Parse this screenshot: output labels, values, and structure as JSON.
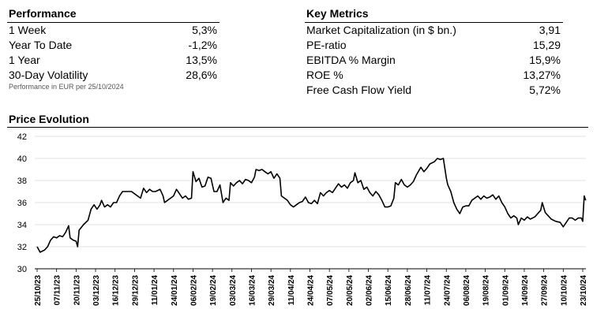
{
  "performance": {
    "title": "Performance",
    "rows": [
      {
        "label": "1 Week",
        "value": "5,3%"
      },
      {
        "label": "Year To Date",
        "value": "-1,2%"
      },
      {
        "label": "1 Year",
        "value": "13,5%"
      },
      {
        "label": "30-Day Volatility",
        "value": "28,6%"
      }
    ],
    "note": "Performance in EUR per 25/10/2024"
  },
  "key_metrics": {
    "title": "Key Metrics",
    "rows": [
      {
        "label": "Market Capitalization (in $ bn.)",
        "value": "3,91"
      },
      {
        "label": "PE-ratio",
        "value": "15,29"
      },
      {
        "label": "EBITDA % Margin",
        "value": "15,9%"
      },
      {
        "label": "ROE %",
        "value": "13,27%"
      },
      {
        "label": "Free Cash Flow Yield",
        "value": "5,72%"
      }
    ]
  },
  "chart_data": {
    "type": "line",
    "title": "Price Evolution",
    "ylim": [
      30,
      42
    ],
    "yticks": [
      30,
      32,
      34,
      36,
      38,
      40,
      42
    ],
    "grid": "horizontal",
    "x_tick_labels": [
      "25/10/23",
      "07/11/23",
      "20/11/23",
      "03/12/23",
      "16/12/23",
      "29/12/23",
      "11/01/24",
      "24/01/24",
      "06/02/24",
      "19/02/24",
      "03/03/24",
      "16/03/24",
      "29/03/24",
      "11/04/24",
      "24/04/24",
      "07/05/24",
      "20/05/24",
      "02/06/24",
      "15/06/24",
      "28/06/24",
      "11/07/24",
      "24/07/24",
      "06/08/24",
      "19/08/24",
      "01/09/24",
      "14/09/24",
      "27/09/24",
      "10/10/24",
      "23/10/24"
    ],
    "series": [
      {
        "color": "#000000",
        "points": [
          [
            "25/10/23",
            32.0
          ],
          [
            "27/10/23",
            31.5
          ],
          [
            "30/10/23",
            31.7
          ],
          [
            "01/11/23",
            32.0
          ],
          [
            "03/11/23",
            32.6
          ],
          [
            "05/11/23",
            32.9
          ],
          [
            "07/11/23",
            32.8
          ],
          [
            "09/11/23",
            33.0
          ],
          [
            "11/11/23",
            32.9
          ],
          [
            "13/11/23",
            33.3
          ],
          [
            "15/11/23",
            33.9
          ],
          [
            "16/11/23",
            32.8
          ],
          [
            "18/11/23",
            32.6
          ],
          [
            "20/11/23",
            32.5
          ],
          [
            "21/11/23",
            32.0
          ],
          [
            "22/11/23",
            33.5
          ],
          [
            "25/11/23",
            34.0
          ],
          [
            "28/11/23",
            34.4
          ],
          [
            "30/11/23",
            35.4
          ],
          [
            "02/12/23",
            35.8
          ],
          [
            "04/12/23",
            35.4
          ],
          [
            "06/12/23",
            35.8
          ],
          [
            "07/12/23",
            36.2
          ],
          [
            "09/12/23",
            35.6
          ],
          [
            "11/12/23",
            35.8
          ],
          [
            "13/12/23",
            35.6
          ],
          [
            "15/12/23",
            36.0
          ],
          [
            "17/12/23",
            36.0
          ],
          [
            "19/12/23",
            36.6
          ],
          [
            "21/12/23",
            37.0
          ],
          [
            "24/12/23",
            37.0
          ],
          [
            "27/12/23",
            37.0
          ],
          [
            "29/12/23",
            36.8
          ],
          [
            "31/12/23",
            36.6
          ],
          [
            "02/01/24",
            36.4
          ],
          [
            "04/01/24",
            37.3
          ],
          [
            "06/01/24",
            36.9
          ],
          [
            "08/01/24",
            37.2
          ],
          [
            "10/01/24",
            37.0
          ],
          [
            "12/01/24",
            37.0
          ],
          [
            "15/01/24",
            37.2
          ],
          [
            "17/01/24",
            36.6
          ],
          [
            "18/01/24",
            36.0
          ],
          [
            "20/01/24",
            36.2
          ],
          [
            "22/01/24",
            36.4
          ],
          [
            "24/01/24",
            36.6
          ],
          [
            "26/01/24",
            37.2
          ],
          [
            "28/01/24",
            36.8
          ],
          [
            "30/01/24",
            36.4
          ],
          [
            "01/02/24",
            36.6
          ],
          [
            "03/02/24",
            36.3
          ],
          [
            "05/02/24",
            36.4
          ],
          [
            "06/02/24",
            38.8
          ],
          [
            "08/02/24",
            37.9
          ],
          [
            "10/02/24",
            38.2
          ],
          [
            "12/02/24",
            37.4
          ],
          [
            "14/02/24",
            37.5
          ],
          [
            "16/02/24",
            38.3
          ],
          [
            "18/02/24",
            38.2
          ],
          [
            "20/02/24",
            37.0
          ],
          [
            "22/02/24",
            37.0
          ],
          [
            "24/02/24",
            37.6
          ],
          [
            "26/02/24",
            36.0
          ],
          [
            "28/02/24",
            36.4
          ],
          [
            "01/03/24",
            36.2
          ],
          [
            "02/03/24",
            37.8
          ],
          [
            "04/03/24",
            37.5
          ],
          [
            "06/03/24",
            37.8
          ],
          [
            "08/03/24",
            38.0
          ],
          [
            "10/03/24",
            37.7
          ],
          [
            "12/03/24",
            38.1
          ],
          [
            "14/03/24",
            38.0
          ],
          [
            "16/03/24",
            37.8
          ],
          [
            "18/03/24",
            38.3
          ],
          [
            "19/03/24",
            39.0
          ],
          [
            "21/03/24",
            38.9
          ],
          [
            "23/03/24",
            39.0
          ],
          [
            "25/03/24",
            38.8
          ],
          [
            "27/03/24",
            38.6
          ],
          [
            "29/03/24",
            38.8
          ],
          [
            "31/03/24",
            38.2
          ],
          [
            "02/04/24",
            38.6
          ],
          [
            "04/04/24",
            38.2
          ],
          [
            "05/04/24",
            36.6
          ],
          [
            "07/04/24",
            36.4
          ],
          [
            "09/04/24",
            36.2
          ],
          [
            "11/04/24",
            35.8
          ],
          [
            "13/04/24",
            35.6
          ],
          [
            "15/04/24",
            35.8
          ],
          [
            "17/04/24",
            36.0
          ],
          [
            "19/04/24",
            36.1
          ],
          [
            "21/04/24",
            36.5
          ],
          [
            "23/04/24",
            36.0
          ],
          [
            "25/04/24",
            35.9
          ],
          [
            "27/04/24",
            36.2
          ],
          [
            "29/04/24",
            35.9
          ],
          [
            "01/05/24",
            36.9
          ],
          [
            "03/05/24",
            36.6
          ],
          [
            "05/05/24",
            36.9
          ],
          [
            "07/05/24",
            37.1
          ],
          [
            "09/05/24",
            36.9
          ],
          [
            "11/05/24",
            37.3
          ],
          [
            "13/05/24",
            37.7
          ],
          [
            "15/05/24",
            37.4
          ],
          [
            "17/05/24",
            37.6
          ],
          [
            "19/05/24",
            37.3
          ],
          [
            "21/05/24",
            37.8
          ],
          [
            "23/05/24",
            38.0
          ],
          [
            "24/05/24",
            38.7
          ],
          [
            "26/05/24",
            37.8
          ],
          [
            "28/05/24",
            38.0
          ],
          [
            "30/05/24",
            37.2
          ],
          [
            "01/06/24",
            37.4
          ],
          [
            "03/06/24",
            36.9
          ],
          [
            "05/06/24",
            36.6
          ],
          [
            "07/06/24",
            37.0
          ],
          [
            "09/06/24",
            36.7
          ],
          [
            "11/06/24",
            36.2
          ],
          [
            "13/06/24",
            35.6
          ],
          [
            "15/06/24",
            35.6
          ],
          [
            "17/06/24",
            35.7
          ],
          [
            "19/06/24",
            36.4
          ],
          [
            "20/06/24",
            37.8
          ],
          [
            "22/06/24",
            37.6
          ],
          [
            "24/06/24",
            38.1
          ],
          [
            "26/06/24",
            37.6
          ],
          [
            "28/06/24",
            37.4
          ],
          [
            "30/06/24",
            37.6
          ],
          [
            "02/07/24",
            37.9
          ],
          [
            "04/07/24",
            38.5
          ],
          [
            "07/07/24",
            39.2
          ],
          [
            "09/07/24",
            38.8
          ],
          [
            "11/07/24",
            39.1
          ],
          [
            "13/07/24",
            39.5
          ],
          [
            "16/07/24",
            39.7
          ],
          [
            "18/07/24",
            40.0
          ],
          [
            "20/07/24",
            39.9
          ],
          [
            "22/07/24",
            40.0
          ],
          [
            "24/07/24",
            38.2
          ],
          [
            "25/07/24",
            37.6
          ],
          [
            "27/07/24",
            37.0
          ],
          [
            "29/07/24",
            36.0
          ],
          [
            "31/07/24",
            35.4
          ],
          [
            "02/08/24",
            35.0
          ],
          [
            "04/08/24",
            35.6
          ],
          [
            "06/08/24",
            35.7
          ],
          [
            "08/08/24",
            35.7
          ],
          [
            "10/08/24",
            36.2
          ],
          [
            "12/08/24",
            36.4
          ],
          [
            "14/08/24",
            36.6
          ],
          [
            "16/08/24",
            36.3
          ],
          [
            "18/08/24",
            36.6
          ],
          [
            "20/08/24",
            36.4
          ],
          [
            "22/08/24",
            36.5
          ],
          [
            "24/08/24",
            36.7
          ],
          [
            "26/08/24",
            36.3
          ],
          [
            "28/08/24",
            36.6
          ],
          [
            "30/08/24",
            36.0
          ],
          [
            "01/09/24",
            35.6
          ],
          [
            "03/09/24",
            35.0
          ],
          [
            "05/09/24",
            34.6
          ],
          [
            "07/09/24",
            34.8
          ],
          [
            "09/09/24",
            34.6
          ],
          [
            "10/09/24",
            34.0
          ],
          [
            "12/09/24",
            34.6
          ],
          [
            "14/09/24",
            34.4
          ],
          [
            "16/09/24",
            34.7
          ],
          [
            "18/09/24",
            34.5
          ],
          [
            "21/09/24",
            34.7
          ],
          [
            "23/09/24",
            35.0
          ],
          [
            "25/09/24",
            35.3
          ],
          [
            "26/09/24",
            36.0
          ],
          [
            "28/09/24",
            35.1
          ],
          [
            "30/09/24",
            34.8
          ],
          [
            "02/10/24",
            34.5
          ],
          [
            "05/10/24",
            34.3
          ],
          [
            "08/10/24",
            34.2
          ],
          [
            "10/10/24",
            33.8
          ],
          [
            "12/10/24",
            34.2
          ],
          [
            "14/10/24",
            34.6
          ],
          [
            "16/10/24",
            34.6
          ],
          [
            "18/10/24",
            34.4
          ],
          [
            "20/10/24",
            34.6
          ],
          [
            "22/10/24",
            34.6
          ],
          [
            "23/10/24",
            34.3
          ],
          [
            "24/10/24",
            36.6
          ],
          [
            "25/10/24",
            36.2
          ]
        ]
      }
    ]
  }
}
